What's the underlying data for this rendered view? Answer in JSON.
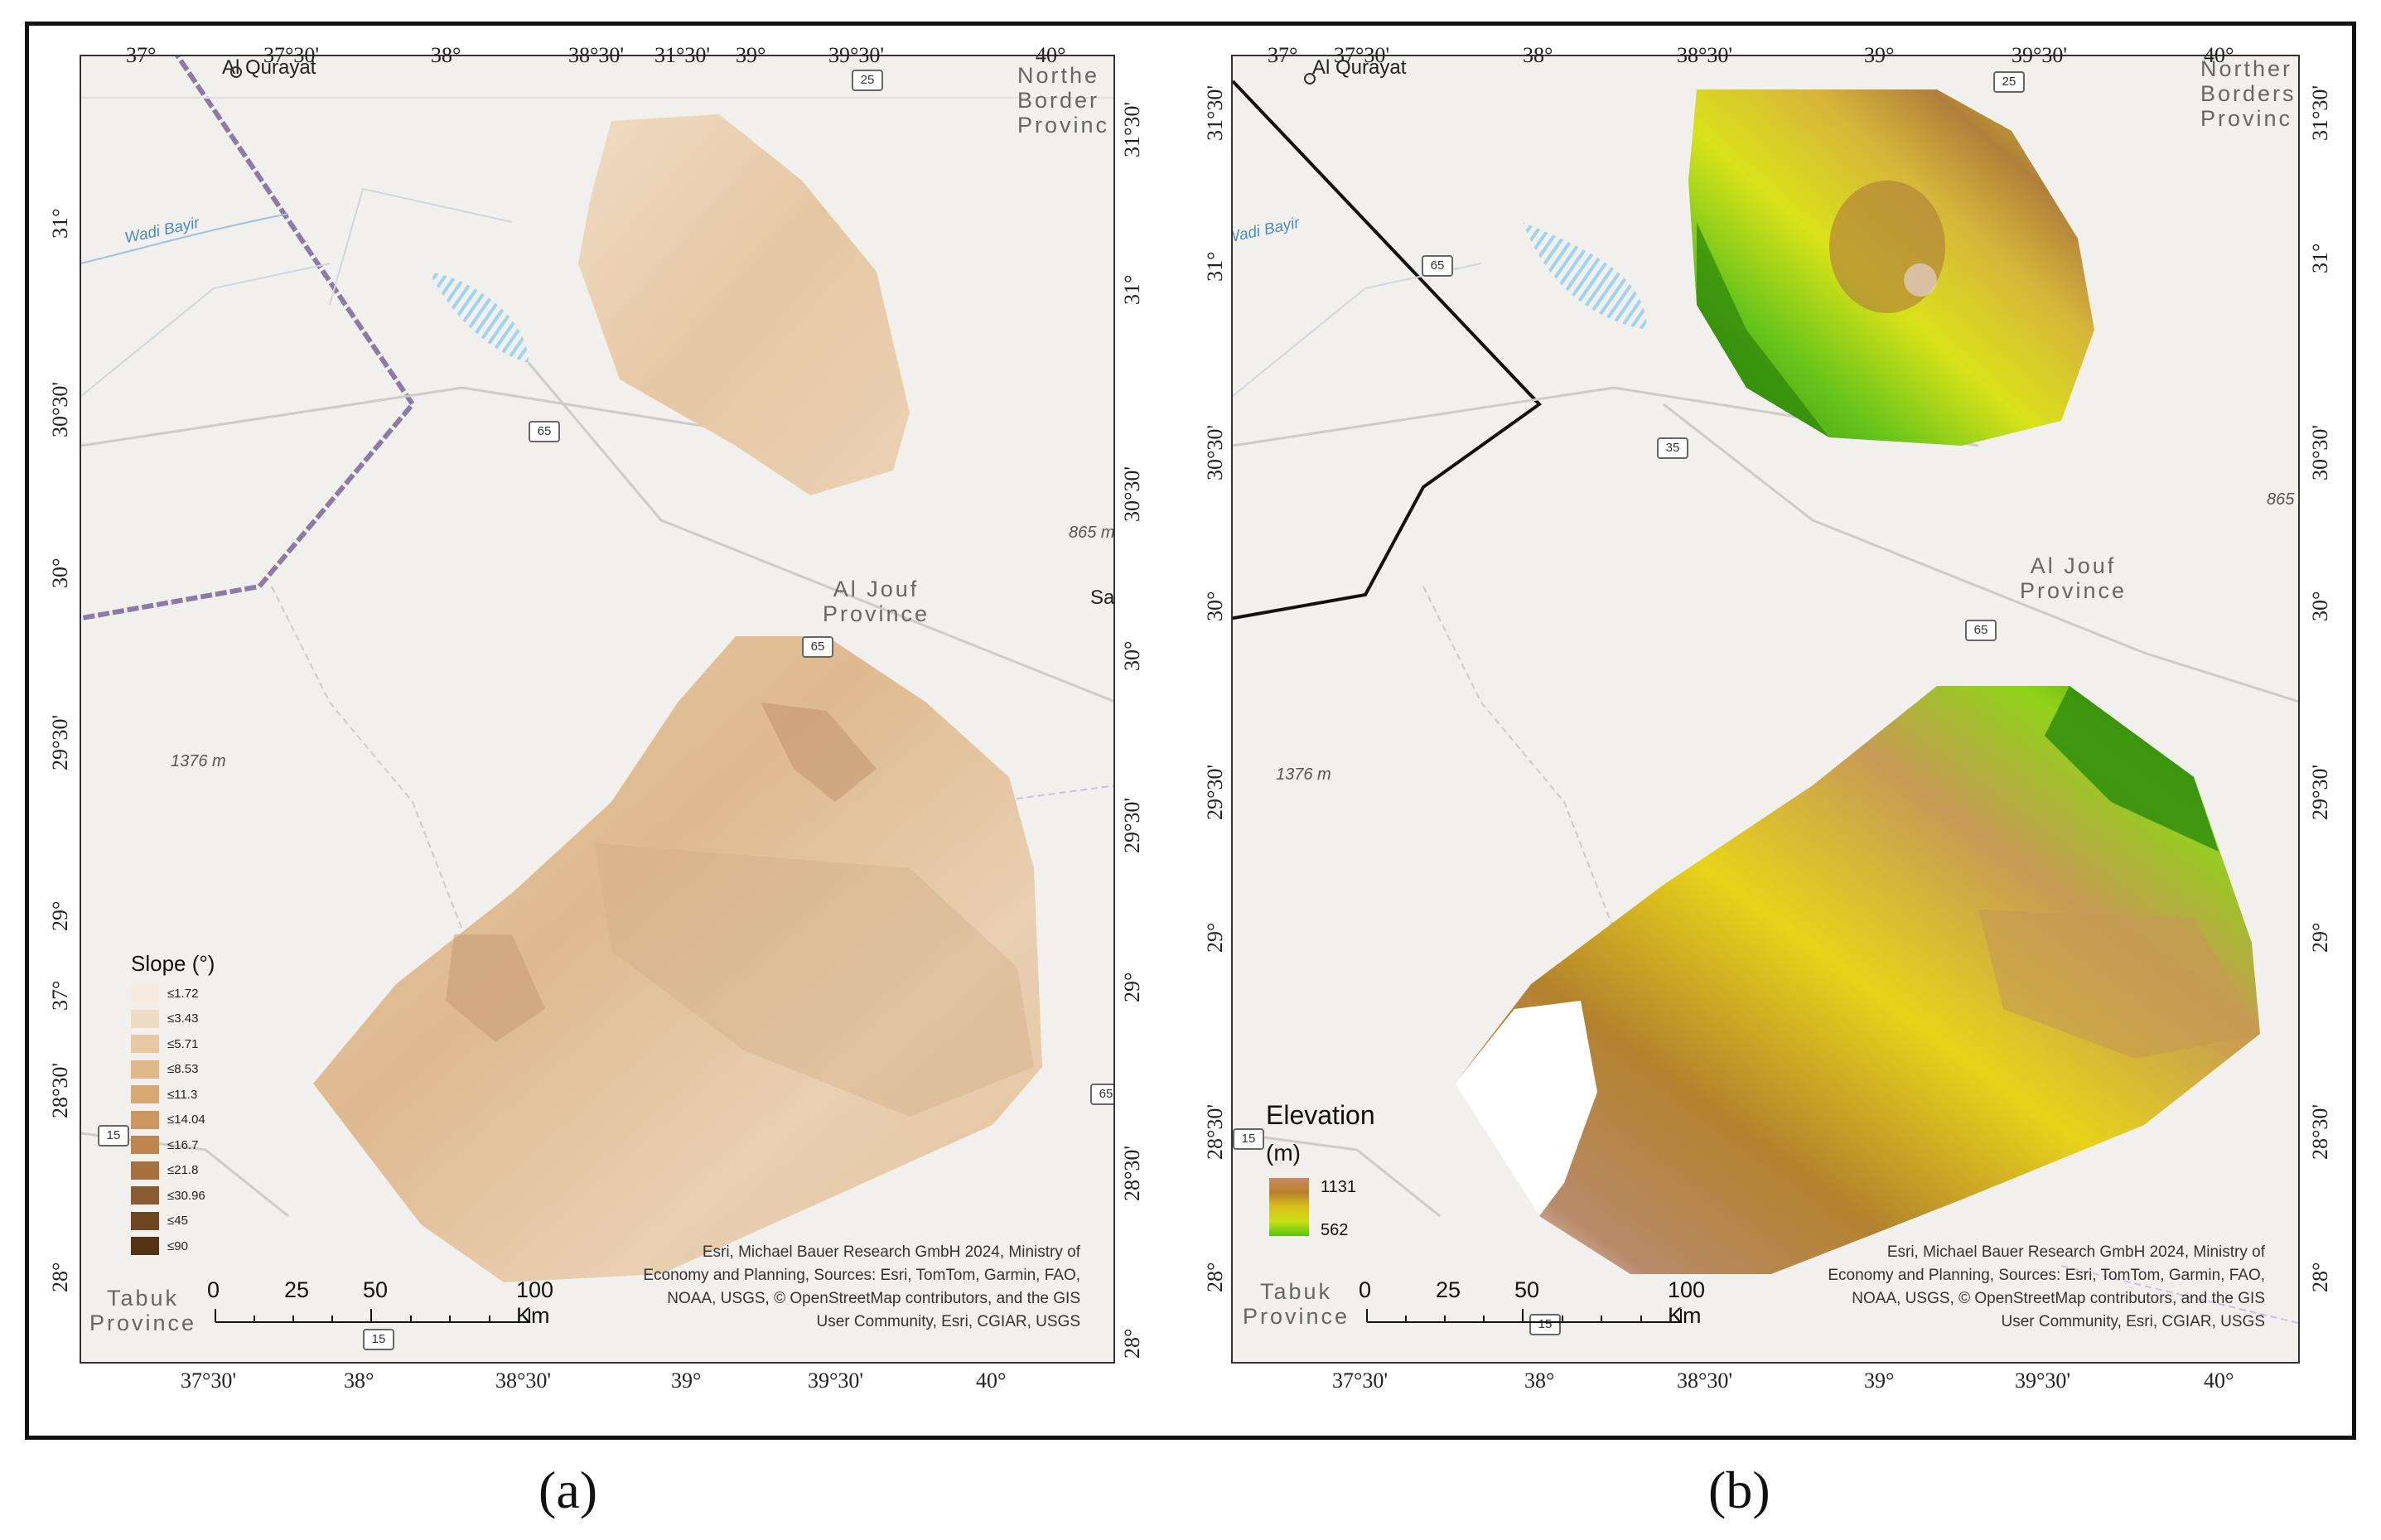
{
  "figure": {
    "captions": [
      "(a)",
      "(b)"
    ]
  },
  "panel_a": {
    "top_ticks": [
      "37°",
      "37°30'",
      "38°",
      "38°30'",
      "31°30'",
      "39°",
      "39°30'",
      "40°"
    ],
    "bottom_ticks": [
      "37°30'",
      "38°",
      "38°30'",
      "39°",
      "39°30'",
      "40°"
    ],
    "left_ticks": [
      "31°",
      "30°30'",
      "30°",
      "29°30'",
      "29°",
      "37°",
      "28°30'",
      "28°"
    ],
    "right_ticks": [
      "31°30'",
      "31°",
      "30°30'",
      "30°",
      "29°30'",
      "29°",
      "28°30'",
      "28°"
    ],
    "labels": {
      "city_qurayat": "Al Qurayat",
      "northern_border": "Northe\nBorder\nProvinc",
      "al_jouf": "Al Jouf\nProvince",
      "tabuk": "Tabuk\nProvince",
      "wadi": "Wadi Bayir",
      "peak_1376": "1376 m",
      "peak_865": "865 m",
      "city_sa": "Sa"
    },
    "shields": [
      "25",
      "65",
      "65",
      "15",
      "65",
      "15"
    ],
    "attribution": "Esri, Michael Bauer Research GmbH 2024, Ministry of\nEconomy and Planning, Sources: Esri, TomTom, Garmin, FAO,\nNOAA, USGS, © OpenStreetMap contributors, and the GIS\nUser Community, Esri, CGIAR, USGS",
    "scale": [
      "0",
      "25",
      "50",
      "100 Km"
    ],
    "legend": {
      "title": "Slope (°)",
      "items": [
        {
          "label": "≤1.72",
          "color": "#f5ebe1"
        },
        {
          "label": "≤3.43",
          "color": "#f0dcc4"
        },
        {
          "label": "≤5.71",
          "color": "#e8c9a4"
        },
        {
          "label": "≤8.53",
          "color": "#e0b88a"
        },
        {
          "label": "≤11.3",
          "color": "#d8a872"
        },
        {
          "label": "≤14.04",
          "color": "#cc9660"
        },
        {
          "label": "≤16.7",
          "color": "#c08550"
        },
        {
          "label": "≤21.8",
          "color": "#a86f3e"
        },
        {
          "label": "≤30.96",
          "color": "#8a5a30"
        },
        {
          "label": "≤45",
          "color": "#6e4624"
        },
        {
          "label": "≤90",
          "color": "#553317"
        }
      ]
    }
  },
  "panel_b": {
    "top_ticks": [
      "37°",
      "37°30'",
      "38°",
      "38°30'",
      "39°",
      "39°30'",
      "40°",
      "31°30'"
    ],
    "bottom_ticks": [
      "37°30'",
      "38°",
      "38°30'",
      "39°",
      "39°30'",
      "40°"
    ],
    "left_ticks": [
      "31°30'",
      "31°",
      "30°30'",
      "30°",
      "29°30'",
      "29°",
      "28°30'",
      "28°"
    ],
    "right_ticks": [
      "31°30'",
      "31°",
      "30°30'",
      "30°",
      "29°30'",
      "29°",
      "28°30'",
      "28°"
    ],
    "labels": {
      "city_qurayat": "Al Qurayat",
      "northern_border": "Norther\nBorders\nProvinc",
      "al_jouf": "Al Jouf\nProvince",
      "tabuk": "Tabuk\nProvince",
      "wadi": "Wadi Bayir",
      "peak_1376": "1376 m",
      "peak_865": "865"
    },
    "shields": [
      "25",
      "65",
      "35",
      "65",
      "15",
      "15"
    ],
    "attribution": "Esri, Michael Bauer Research GmbH 2024, Ministry of\nEconomy and Planning, Sources: Esri, TomTom, Garmin, FAO,\nNOAA, USGS, © OpenStreetMap contributors, and the GIS\nUser Community, Esri, CGIAR, USGS",
    "scale": [
      "0",
      "25",
      "50",
      "100 Km"
    ],
    "legend": {
      "title": "Elevation",
      "unit": "(m)",
      "max": "1131",
      "min": "562"
    }
  }
}
